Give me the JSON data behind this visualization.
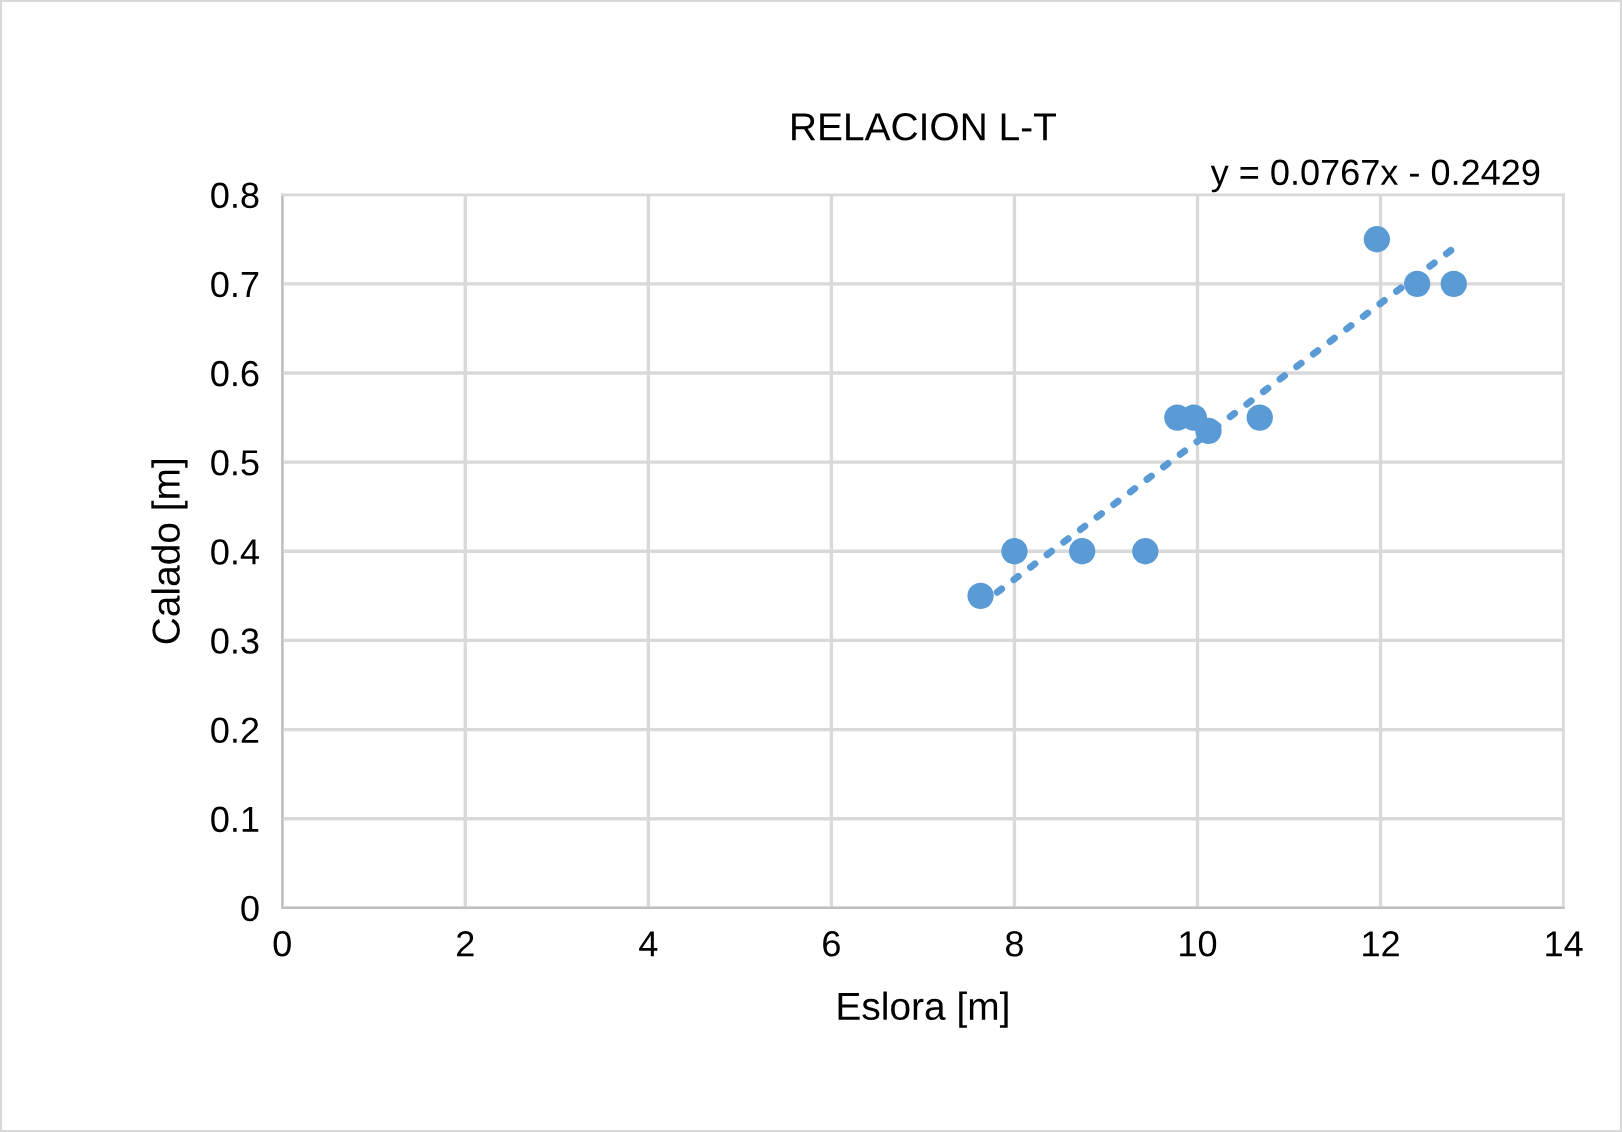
{
  "chart_data": {
    "type": "scatter",
    "title": "RELACION L-T",
    "xlabel": "Eslora [m]",
    "ylabel": "Calado [m]",
    "xlim": [
      0,
      14
    ],
    "xticks": [
      0,
      2,
      4,
      6,
      8,
      10,
      12,
      14
    ],
    "ylim": [
      0,
      0.8
    ],
    "yticks": [
      0,
      0.1,
      0.2,
      0.3,
      0.4,
      0.5,
      0.6,
      0.7,
      0.8
    ],
    "grid": true,
    "legend": false,
    "marker": "circle",
    "annotations": [
      "y = 0.0767x - 0.2429"
    ],
    "series": [
      {
        "color": "#5b9bd5",
        "x": [
          7.63,
          8.0,
          8.74,
          9.43,
          9.78,
          9.96,
          10.12,
          10.68,
          11.96,
          12.4,
          12.8
        ],
        "values": [
          0.35,
          0.4,
          0.4,
          0.4,
          0.55,
          0.55,
          0.535,
          0.55,
          0.75,
          0.7,
          0.7
        ]
      },
      {
        "type": "line",
        "color": "#5b9bd5",
        "line_style": "dotted",
        "marker": "none",
        "x": [
          7.63,
          12.8
        ],
        "values": [
          0.34,
          0.74
        ]
      }
    ]
  }
}
